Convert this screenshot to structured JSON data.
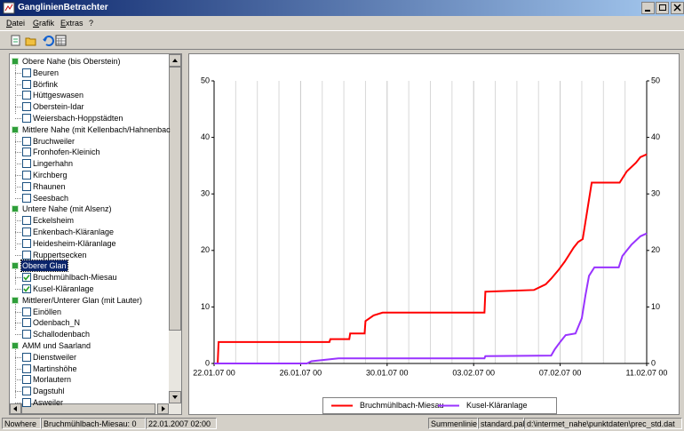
{
  "window": {
    "title": "GanglinienBetrachter",
    "menu": [
      "Datei",
      "Grafik",
      "Extras",
      "?"
    ],
    "tree": [
      {
        "label": "Obere Nahe (bis Oberstein)",
        "selected": false,
        "children": [
          {
            "label": "Beuren",
            "checked": false
          },
          {
            "label": "Börfink",
            "checked": false
          },
          {
            "label": "Hüttgeswasen",
            "checked": false
          },
          {
            "label": "Oberstein-Idar",
            "checked": false
          },
          {
            "label": "Weiersbach-Hoppstädten",
            "checked": false
          }
        ]
      },
      {
        "label": "Mittlere Nahe (mit Kellenbach/Hahnenbac",
        "selected": false,
        "children": [
          {
            "label": "Bruchweiler",
            "checked": false
          },
          {
            "label": "Fronhofen-Kleinich",
            "checked": false
          },
          {
            "label": "Lingerhahn",
            "checked": false
          },
          {
            "label": "Kirchberg",
            "checked": false
          },
          {
            "label": "Rhaunen",
            "checked": false
          },
          {
            "label": "Seesbach",
            "checked": false
          }
        ]
      },
      {
        "label": "Untere Nahe (mit Alsenz)",
        "selected": false,
        "children": [
          {
            "label": "Eckelsheim",
            "checked": false
          },
          {
            "label": "Enkenbach-Kläranlage",
            "checked": false
          },
          {
            "label": "Heidesheim-Kläranlage",
            "checked": false
          },
          {
            "label": "Ruppertsecken",
            "checked": false
          }
        ]
      },
      {
        "label": "Oberer Glan",
        "selected": true,
        "children": [
          {
            "label": "Bruchmühlbach-Miesau",
            "checked": true
          },
          {
            "label": "Kusel-Kläranlage",
            "checked": true
          }
        ]
      },
      {
        "label": "Mittlerer/Unterer Glan (mit Lauter)",
        "selected": false,
        "children": [
          {
            "label": "Einöllen",
            "checked": false
          },
          {
            "label": "Odenbach_N",
            "checked": false
          },
          {
            "label": "Schallodenbach",
            "checked": false
          }
        ]
      },
      {
        "label": "AMM und Saarland",
        "selected": false,
        "children": [
          {
            "label": "Dienstweiler",
            "checked": false
          },
          {
            "label": "Martinshöhe",
            "checked": false
          },
          {
            "label": "Morlautern",
            "checked": false
          },
          {
            "label": "Dagstuhl",
            "checked": false
          },
          {
            "label": "Asweiler",
            "checked": false
          }
        ]
      }
    ],
    "status_left": [
      "Nowhere",
      "Bruchmühlbach-Miesau: 0",
      "22.01.2007 02:00"
    ],
    "status_right": [
      "Summenlinie",
      "standard.pal",
      "d:\\intermet_nahe\\punktdaten\\prec_std.dat"
    ]
  },
  "chart_data": {
    "type": "line",
    "xlim": [
      "22.01.07 00",
      "11.02.07 00"
    ],
    "xticks": [
      "22.01.07 00",
      "26.01.07 00",
      "30.01.07 00",
      "03.02.07 00",
      "07.02.07 00",
      "11.02.07 00"
    ],
    "xminorticks": [
      "23.01.07 00",
      "24.01.07 00",
      "25.01.07 00",
      "27.01.07 00",
      "28.01.07 00",
      "29.01.07 00",
      "31.01.07 00",
      "01.02.07 00",
      "02.02.07 00",
      "04.02.07 00",
      "05.02.07 00",
      "06.02.07 00",
      "08.02.07 00",
      "09.02.07 00",
      "10.02.07 00"
    ],
    "ylim": [
      0,
      50
    ],
    "yticks": [
      0,
      10,
      20,
      30,
      40,
      50
    ],
    "y2lim": [
      0,
      50
    ],
    "y2ticks": [
      0,
      10,
      20,
      30,
      40,
      50
    ],
    "grid": true,
    "legend": "bottom",
    "series": [
      {
        "name": "Bruchmühlbach-Miesau",
        "color": "#ff0000",
        "x": [
          "22.01.07 00",
          "22.01.07 04",
          "22.01.07 05",
          "27.01.07 08",
          "27.01.07 09",
          "28.01.07 06",
          "28.01.07 07",
          "28.01.07 23",
          "29.01.07 00",
          "29.01.07 09",
          "29.01.07 19",
          "03.02.07 12",
          "03.02.07 13",
          "05.02.07 19",
          "06.02.07 08",
          "06.02.07 14",
          "06.02.07 22",
          "07.02.07 05",
          "07.02.07 15",
          "07.02.07 20",
          "08.02.07 01",
          "08.02.07 06",
          "08.02.07 11",
          "09.02.07 18",
          "10.02.07 02",
          "10.02.07 12",
          "10.02.07 17",
          "11.02.07 00"
        ],
        "values": [
          0,
          0,
          3.8,
          3.8,
          4.3,
          4.3,
          5.3,
          5.3,
          7.5,
          8.5,
          9,
          9,
          12.7,
          13,
          14,
          15,
          16.5,
          18,
          20.5,
          21.5,
          22,
          27,
          32,
          32,
          34,
          35.5,
          36.5,
          37
        ]
      },
      {
        "name": "Kusel-Kläranlage",
        "color": "#9933ff",
        "x": [
          "22.01.07 00",
          "26.01.07 07",
          "26.01.07 12",
          "27.01.07 18",
          "03.02.07 12",
          "03.02.07 13",
          "06.02.07 14",
          "06.02.07 18",
          "07.02.07 00",
          "07.02.07 06",
          "07.02.07 17",
          "08.02.07 00",
          "08.02.07 04",
          "08.02.07 08",
          "08.02.07 14",
          "09.02.07 17",
          "09.02.07 21",
          "10.02.07 02",
          "10.02.07 07",
          "10.02.07 17",
          "11.02.07 00"
        ],
        "values": [
          0,
          0,
          0.4,
          0.9,
          0.9,
          1.3,
          1.4,
          2.5,
          3.8,
          5,
          5.3,
          8,
          12,
          15.5,
          17,
          17,
          19,
          20,
          21,
          22.5,
          23
        ]
      }
    ]
  }
}
